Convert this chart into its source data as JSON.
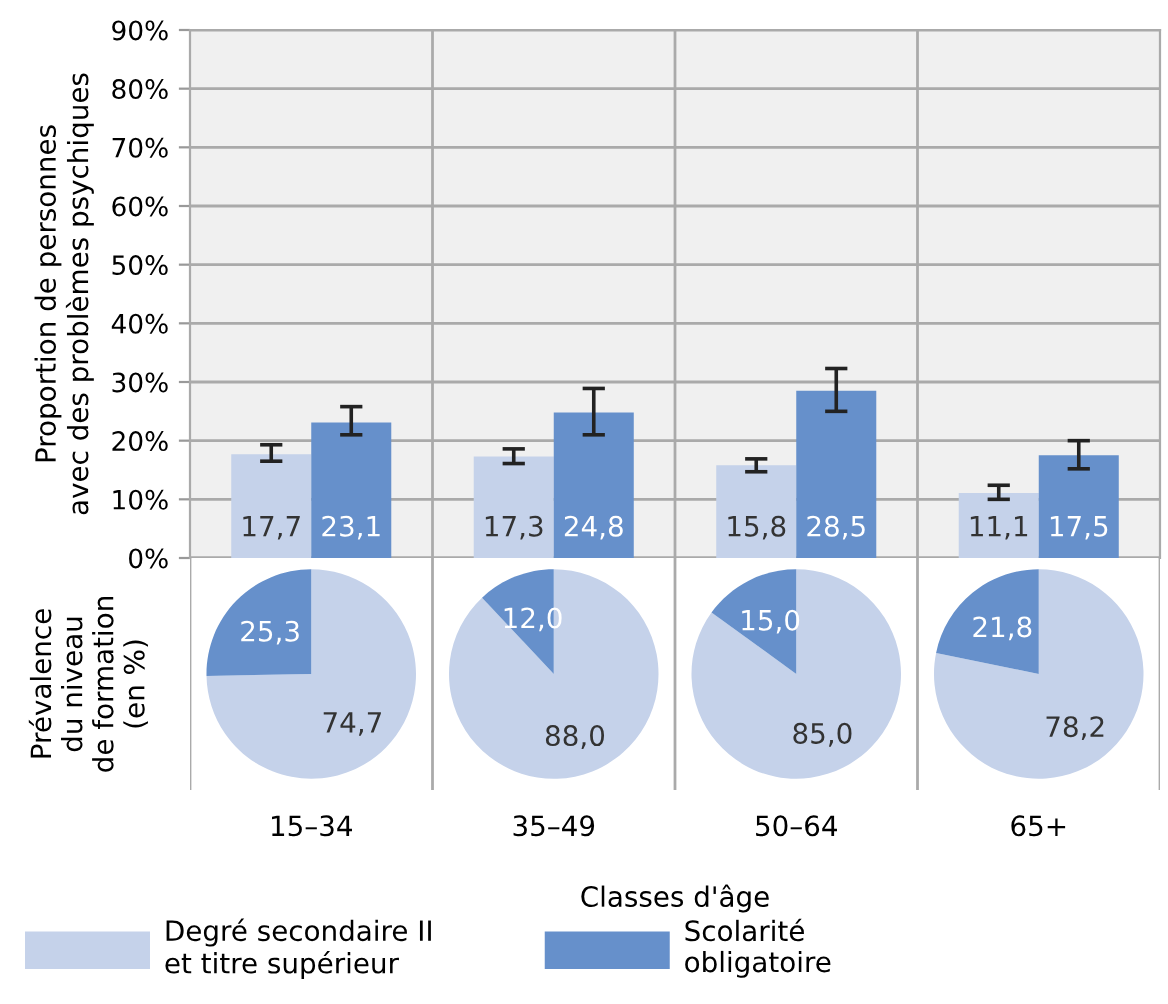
{
  "chart_data": [
    {
      "type": "bar",
      "ylabel": "Proportion de personnes\navec des problèmes psychiques",
      "xlabel": "Classes d'âge",
      "categories": [
        null,
        null,
        null,
        null
      ],
      "series": [
        {
          "name": "Degré secondaire II\net titre supérieur",
          "color": "#c5d2ea",
          "values": [
            17.7,
            17.3,
            15.8,
            11.1
          ],
          "value_labels": [
            "17,7",
            "17,3",
            "15,8",
            "11,1"
          ],
          "errors": [
            [
              16.5,
              19.3
            ],
            [
              16.1,
              18.6
            ],
            [
              14.7,
              16.9
            ],
            [
              10.0,
              12.4
            ]
          ]
        },
        {
          "name": "Scolarité\nobligatoire",
          "color": "#6690cb",
          "values": [
            23.1,
            24.8,
            28.5,
            17.5
          ],
          "value_labels": [
            "23,1",
            "24,8",
            "28,5",
            "17,5"
          ],
          "errors": [
            [
              21.0,
              25.8
            ],
            [
              21.0,
              28.9
            ],
            [
              25.0,
              32.3
            ],
            [
              15.2,
              20.0
            ]
          ]
        }
      ],
      "ylim": [
        0,
        90
      ],
      "yticks": [
        {
          "value": 0,
          "label": "0%"
        },
        {
          "value": 10,
          "label": "10%"
        },
        {
          "value": 20,
          "label": "20%"
        },
        {
          "value": 30,
          "label": "30%"
        },
        {
          "value": 40,
          "label": "40%"
        },
        {
          "value": 50,
          "label": "50%"
        },
        {
          "value": 60,
          "label": "60%"
        },
        {
          "value": 70,
          "label": "70%"
        },
        {
          "value": 80,
          "label": "80%"
        },
        {
          "value": 90,
          "label": "90%"
        }
      ],
      "grid": true,
      "legend": "bottom",
      "tick_labels": "y"
    },
    {
      "type": "pie",
      "ylabel": "Prévalence\ndu niveau\nde formation\n(en %)",
      "title": "15–34",
      "categories": [
        null,
        null
      ],
      "values": [
        74.7,
        25.3
      ],
      "value_labels": [
        "74,7",
        "25,3"
      ],
      "colors": [
        "#c5d2ea",
        "#6690cb"
      ]
    },
    {
      "type": "pie",
      "title": "35–49",
      "categories": [
        null,
        null
      ],
      "values": [
        88.0,
        12.0
      ],
      "value_labels": [
        "88,0",
        "12,0"
      ],
      "colors": [
        "#c5d2ea",
        "#6690cb"
      ]
    },
    {
      "type": "pie",
      "title": "50–64",
      "categories": [
        null,
        null
      ],
      "values": [
        85.0,
        15.0
      ],
      "value_labels": [
        "85,0",
        "15,0"
      ],
      "colors": [
        "#c5d2ea",
        "#6690cb"
      ]
    },
    {
      "type": "pie",
      "title": "65+",
      "categories": [
        null,
        null
      ],
      "values": [
        78.2,
        21.8
      ],
      "value_labels": [
        "78,2",
        "21,8"
      ],
      "colors": [
        "#c5d2ea",
        "#6690cb"
      ]
    }
  ]
}
